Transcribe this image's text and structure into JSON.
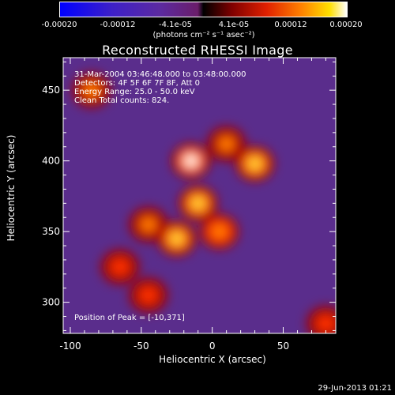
{
  "colorbar": {
    "ticks": [
      "-0.00020",
      "-0.00012",
      "-4.1e-05",
      "4.1e-05",
      "0.00012",
      "0.00020"
    ],
    "units": "(photons cm",
    "units_full": "(photons cm⁻² s⁻¹ asec⁻²)"
  },
  "chart_data": {
    "type": "heatmap",
    "title": "Reconstructed RHESSI Image",
    "xlabel": "Heliocentric X (arcsec)",
    "ylabel": "Heliocentric Y (arcsec)",
    "xlim": [
      -105,
      87
    ],
    "ylim": [
      278,
      473
    ],
    "xticks": [
      -100,
      -50,
      0,
      50
    ],
    "yticks": [
      300,
      350,
      400,
      450
    ],
    "color_range": [
      -0.0002,
      0.0002
    ],
    "colormap": "blue-purple-red-yellow-white",
    "bright_sources": [
      {
        "x": -15,
        "y": 400,
        "level": 0.95
      },
      {
        "x": 30,
        "y": 398,
        "level": 0.8
      },
      {
        "x": -10,
        "y": 370,
        "level": 0.9
      },
      {
        "x": -25,
        "y": 345,
        "level": 0.85
      },
      {
        "x": 5,
        "y": 350,
        "level": 0.75
      },
      {
        "x": -45,
        "y": 355,
        "level": 0.6
      },
      {
        "x": 10,
        "y": 412,
        "level": 0.6
      },
      {
        "x": -65,
        "y": 325,
        "level": 0.5
      },
      {
        "x": -45,
        "y": 305,
        "level": 0.45
      },
      {
        "x": -85,
        "y": 450,
        "level": 0.55
      },
      {
        "x": 80,
        "y": 285,
        "level": 0.5
      }
    ],
    "annotations": [
      "31-Mar-2004 03:46:48.000 to 03:48:00.000",
      "Detectors: 4F 5F 6F 7F 8F, Att 0",
      "Energy Range: 25.0 - 50.0 keV",
      "Clean    Total counts: 824.",
      "Position of Peak = [-10,371]"
    ]
  },
  "footer": {
    "datestamp": "29-Jun-2013 01:21"
  }
}
